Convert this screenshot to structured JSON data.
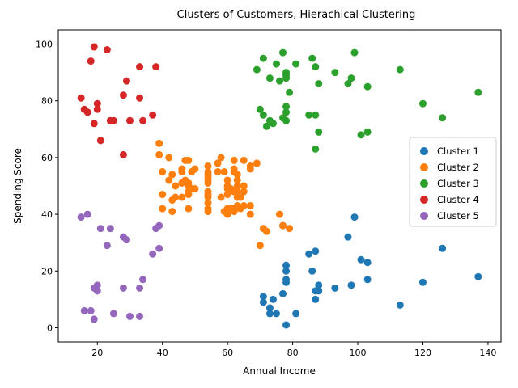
{
  "chart_data": {
    "type": "scatter",
    "title": "Clusters of Customers, Hierachical Clustering",
    "xlabel": "Annual Income",
    "ylabel": "Spending Score",
    "xlim": [
      8,
      144
    ],
    "ylim": [
      -5,
      105
    ],
    "xticks": [
      20,
      40,
      60,
      80,
      100,
      120,
      140
    ],
    "yticks": [
      0,
      20,
      40,
      60,
      80,
      100
    ],
    "grid": false,
    "legend_position": "center-right",
    "series": [
      {
        "name": "Cluster 1",
        "color": "#1f77b4",
        "points": [
          [
            71,
            11
          ],
          [
            71,
            9
          ],
          [
            73,
            5
          ],
          [
            73,
            7
          ],
          [
            74,
            10
          ],
          [
            75,
            5
          ],
          [
            77,
            12
          ],
          [
            77,
            36
          ],
          [
            78,
            22
          ],
          [
            78,
            17
          ],
          [
            78,
            20
          ],
          [
            78,
            16
          ],
          [
            78,
            1
          ],
          [
            81,
            5
          ],
          [
            85,
            26
          ],
          [
            86,
            20
          ],
          [
            87,
            27
          ],
          [
            87,
            13
          ],
          [
            87,
            10
          ],
          [
            88,
            13
          ],
          [
            88,
            15
          ],
          [
            93,
            14
          ],
          [
            97,
            32
          ],
          [
            98,
            15
          ],
          [
            99,
            39
          ],
          [
            101,
            24
          ],
          [
            103,
            17
          ],
          [
            103,
            23
          ],
          [
            113,
            8
          ],
          [
            120,
            16
          ],
          [
            126,
            28
          ],
          [
            137,
            18
          ]
        ]
      },
      {
        "name": "Cluster 2",
        "color": "#ff7f0e",
        "points": [
          [
            39,
            61
          ],
          [
            39,
            65
          ],
          [
            40,
            55
          ],
          [
            40,
            47
          ],
          [
            40,
            42
          ],
          [
            42,
            52
          ],
          [
            42,
            60
          ],
          [
            43,
            54
          ],
          [
            43,
            45
          ],
          [
            43,
            41
          ],
          [
            44,
            50
          ],
          [
            44,
            46
          ],
          [
            46,
            51
          ],
          [
            46,
            46
          ],
          [
            46,
            56
          ],
          [
            46,
            55
          ],
          [
            47,
            52
          ],
          [
            47,
            59
          ],
          [
            48,
            51
          ],
          [
            48,
            59
          ],
          [
            48,
            50
          ],
          [
            48,
            48
          ],
          [
            48,
            47
          ],
          [
            48,
            42
          ],
          [
            49,
            49
          ],
          [
            49,
            55
          ],
          [
            50,
            56
          ],
          [
            50,
            49
          ],
          [
            54,
            47
          ],
          [
            54,
            54
          ],
          [
            54,
            53
          ],
          [
            54,
            48
          ],
          [
            54,
            52
          ],
          [
            54,
            42
          ],
          [
            54,
            51
          ],
          [
            54,
            55
          ],
          [
            54,
            41
          ],
          [
            54,
            44
          ],
          [
            54,
            57
          ],
          [
            54,
            46
          ],
          [
            57,
            58
          ],
          [
            57,
            55
          ],
          [
            58,
            60
          ],
          [
            58,
            46
          ],
          [
            59,
            55
          ],
          [
            59,
            41
          ],
          [
            60,
            49
          ],
          [
            60,
            40
          ],
          [
            60,
            42
          ],
          [
            60,
            52
          ],
          [
            60,
            47
          ],
          [
            60,
            50
          ],
          [
            61,
            42
          ],
          [
            61,
            49
          ],
          [
            62,
            41
          ],
          [
            62,
            48
          ],
          [
            62,
            59
          ],
          [
            62,
            55
          ],
          [
            62,
            56
          ],
          [
            62,
            42
          ],
          [
            63,
            50
          ],
          [
            63,
            46
          ],
          [
            63,
            43
          ],
          [
            63,
            48
          ],
          [
            63,
            52
          ],
          [
            63,
            54
          ],
          [
            64,
            42
          ],
          [
            64,
            46
          ],
          [
            65,
            48
          ],
          [
            65,
            50
          ],
          [
            65,
            43
          ],
          [
            65,
            59
          ],
          [
            67,
            43
          ],
          [
            67,
            57
          ],
          [
            67,
            56
          ],
          [
            67,
            40
          ],
          [
            69,
            58
          ],
          [
            70,
            29
          ],
          [
            71,
            35
          ],
          [
            72,
            34
          ],
          [
            76,
            40
          ],
          [
            77,
            36
          ],
          [
            79,
            35
          ]
        ]
      },
      {
        "name": "Cluster 3",
        "color": "#2ca02c",
        "points": [
          [
            69,
            91
          ],
          [
            70,
            77
          ],
          [
            71,
            95
          ],
          [
            71,
            75
          ],
          [
            72,
            71
          ],
          [
            73,
            88
          ],
          [
            73,
            73
          ],
          [
            74,
            72
          ],
          [
            75,
            93
          ],
          [
            76,
            87
          ],
          [
            77,
            97
          ],
          [
            77,
            74
          ],
          [
            78,
            90
          ],
          [
            78,
            88
          ],
          [
            78,
            76
          ],
          [
            78,
            89
          ],
          [
            78,
            78
          ],
          [
            78,
            73
          ],
          [
            79,
            83
          ],
          [
            81,
            93
          ],
          [
            85,
            75
          ],
          [
            86,
            95
          ],
          [
            87,
            63
          ],
          [
            87,
            75
          ],
          [
            87,
            92
          ],
          [
            88,
            86
          ],
          [
            88,
            69
          ],
          [
            93,
            90
          ],
          [
            97,
            86
          ],
          [
            98,
            88
          ],
          [
            99,
            97
          ],
          [
            101,
            68
          ],
          [
            103,
            85
          ],
          [
            103,
            69
          ],
          [
            113,
            91
          ],
          [
            120,
            79
          ],
          [
            126,
            74
          ],
          [
            137,
            83
          ]
        ]
      },
      {
        "name": "Cluster 4",
        "color": "#d62728",
        "points": [
          [
            15,
            81
          ],
          [
            16,
            77
          ],
          [
            17,
            76
          ],
          [
            18,
            94
          ],
          [
            19,
            72
          ],
          [
            19,
            99
          ],
          [
            20,
            77
          ],
          [
            20,
            79
          ],
          [
            21,
            66
          ],
          [
            23,
            98
          ],
          [
            24,
            73
          ],
          [
            25,
            73
          ],
          [
            28,
            82
          ],
          [
            28,
            61
          ],
          [
            29,
            87
          ],
          [
            30,
            73
          ],
          [
            33,
            92
          ],
          [
            33,
            81
          ],
          [
            34,
            73
          ],
          [
            37,
            75
          ],
          [
            38,
            92
          ]
        ]
      },
      {
        "name": "Cluster 5",
        "color": "#9467bd",
        "points": [
          [
            15,
            39
          ],
          [
            16,
            6
          ],
          [
            17,
            40
          ],
          [
            18,
            6
          ],
          [
            19,
            3
          ],
          [
            19,
            14
          ],
          [
            20,
            15
          ],
          [
            20,
            13
          ],
          [
            21,
            35
          ],
          [
            23,
            29
          ],
          [
            24,
            35
          ],
          [
            25,
            5
          ],
          [
            28,
            14
          ],
          [
            28,
            32
          ],
          [
            29,
            31
          ],
          [
            30,
            4
          ],
          [
            33,
            4
          ],
          [
            33,
            14
          ],
          [
            34,
            17
          ],
          [
            37,
            26
          ],
          [
            38,
            35
          ],
          [
            39,
            36
          ],
          [
            39,
            28
          ]
        ]
      }
    ]
  }
}
